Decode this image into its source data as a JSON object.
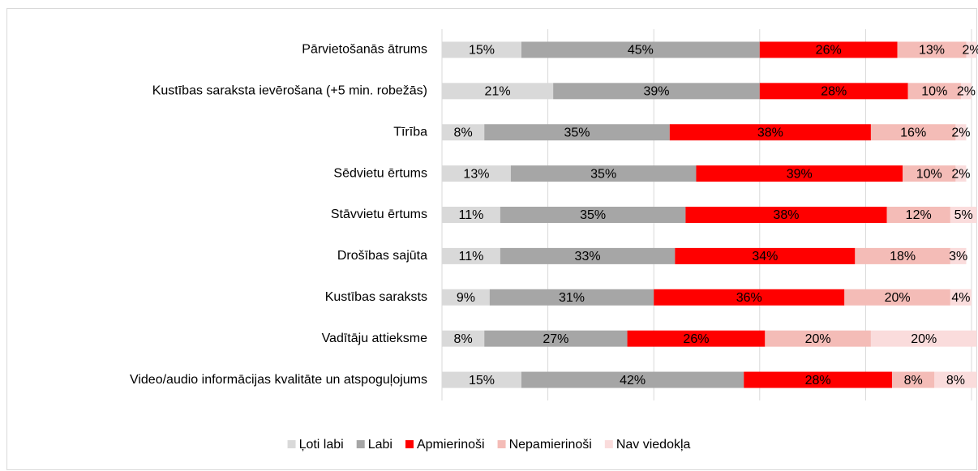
{
  "chart_data": {
    "type": "stacked_bar_horizontal",
    "categories": [
      "Pārvietošanās ātrums",
      "Kustības saraksta ievērošana (+5 min. robežās)",
      "Tīrība",
      "Sēdvietu ērtums",
      "Stāvvietu ērtums",
      "Drošības sajūta",
      "Kustības saraksts",
      "Vadītāju attieksme",
      "Video/audio informācijas kvalitāte un atspoguļojums"
    ],
    "series": [
      {
        "name": "Ļoti labi",
        "color": "#d9d9d9",
        "label_color": "#000000",
        "values": [
          15,
          21,
          8,
          13,
          11,
          11,
          9,
          8,
          15
        ],
        "value_labels": [
          "15%",
          "21%",
          "8%",
          "13%",
          "11%",
          "11%",
          "9%",
          "8%",
          "15%"
        ]
      },
      {
        "name": "Labi",
        "color": "#a6a6a6",
        "label_color": "#000000",
        "values": [
          45,
          39,
          35,
          35,
          35,
          33,
          31,
          27,
          42
        ],
        "value_labels": [
          "45%",
          "39%",
          "35%",
          "35%",
          "35%",
          "33%",
          "31%",
          "27%",
          "42%"
        ]
      },
      {
        "name": "Apmierinoši",
        "color": "#ff0000",
        "label_color": "#9c0006",
        "values": [
          26,
          28,
          38,
          39,
          38,
          34,
          36,
          26,
          28
        ],
        "value_labels": [
          "26%",
          "28%",
          "38%",
          "39%",
          "38%",
          "34%",
          "36%",
          "26%",
          "28%"
        ]
      },
      {
        "name": "Nepamierinoši",
        "color": "#f4bcb7",
        "label_color": "#000000",
        "values": [
          13,
          10,
          16,
          10,
          12,
          18,
          20,
          20,
          8
        ],
        "value_labels": [
          "13%",
          "10%",
          "16%",
          "10%",
          "12%",
          "18%",
          "20%",
          "20%",
          "8%"
        ]
      },
      {
        "name": "Nav viedokļa",
        "color": "#fadcdc",
        "label_color": "#000000",
        "values": [
          2,
          2,
          2,
          2,
          5,
          3,
          4,
          20,
          8
        ],
        "value_labels": [
          "2%",
          "2%",
          "2%",
          "2%",
          "5%",
          "3%",
          "4%",
          "20%",
          "8%"
        ]
      }
    ],
    "xlim": [
      0,
      100
    ],
    "xticks": [
      0,
      20,
      40,
      60,
      80,
      100
    ],
    "grid": true,
    "legend": "bottom"
  }
}
